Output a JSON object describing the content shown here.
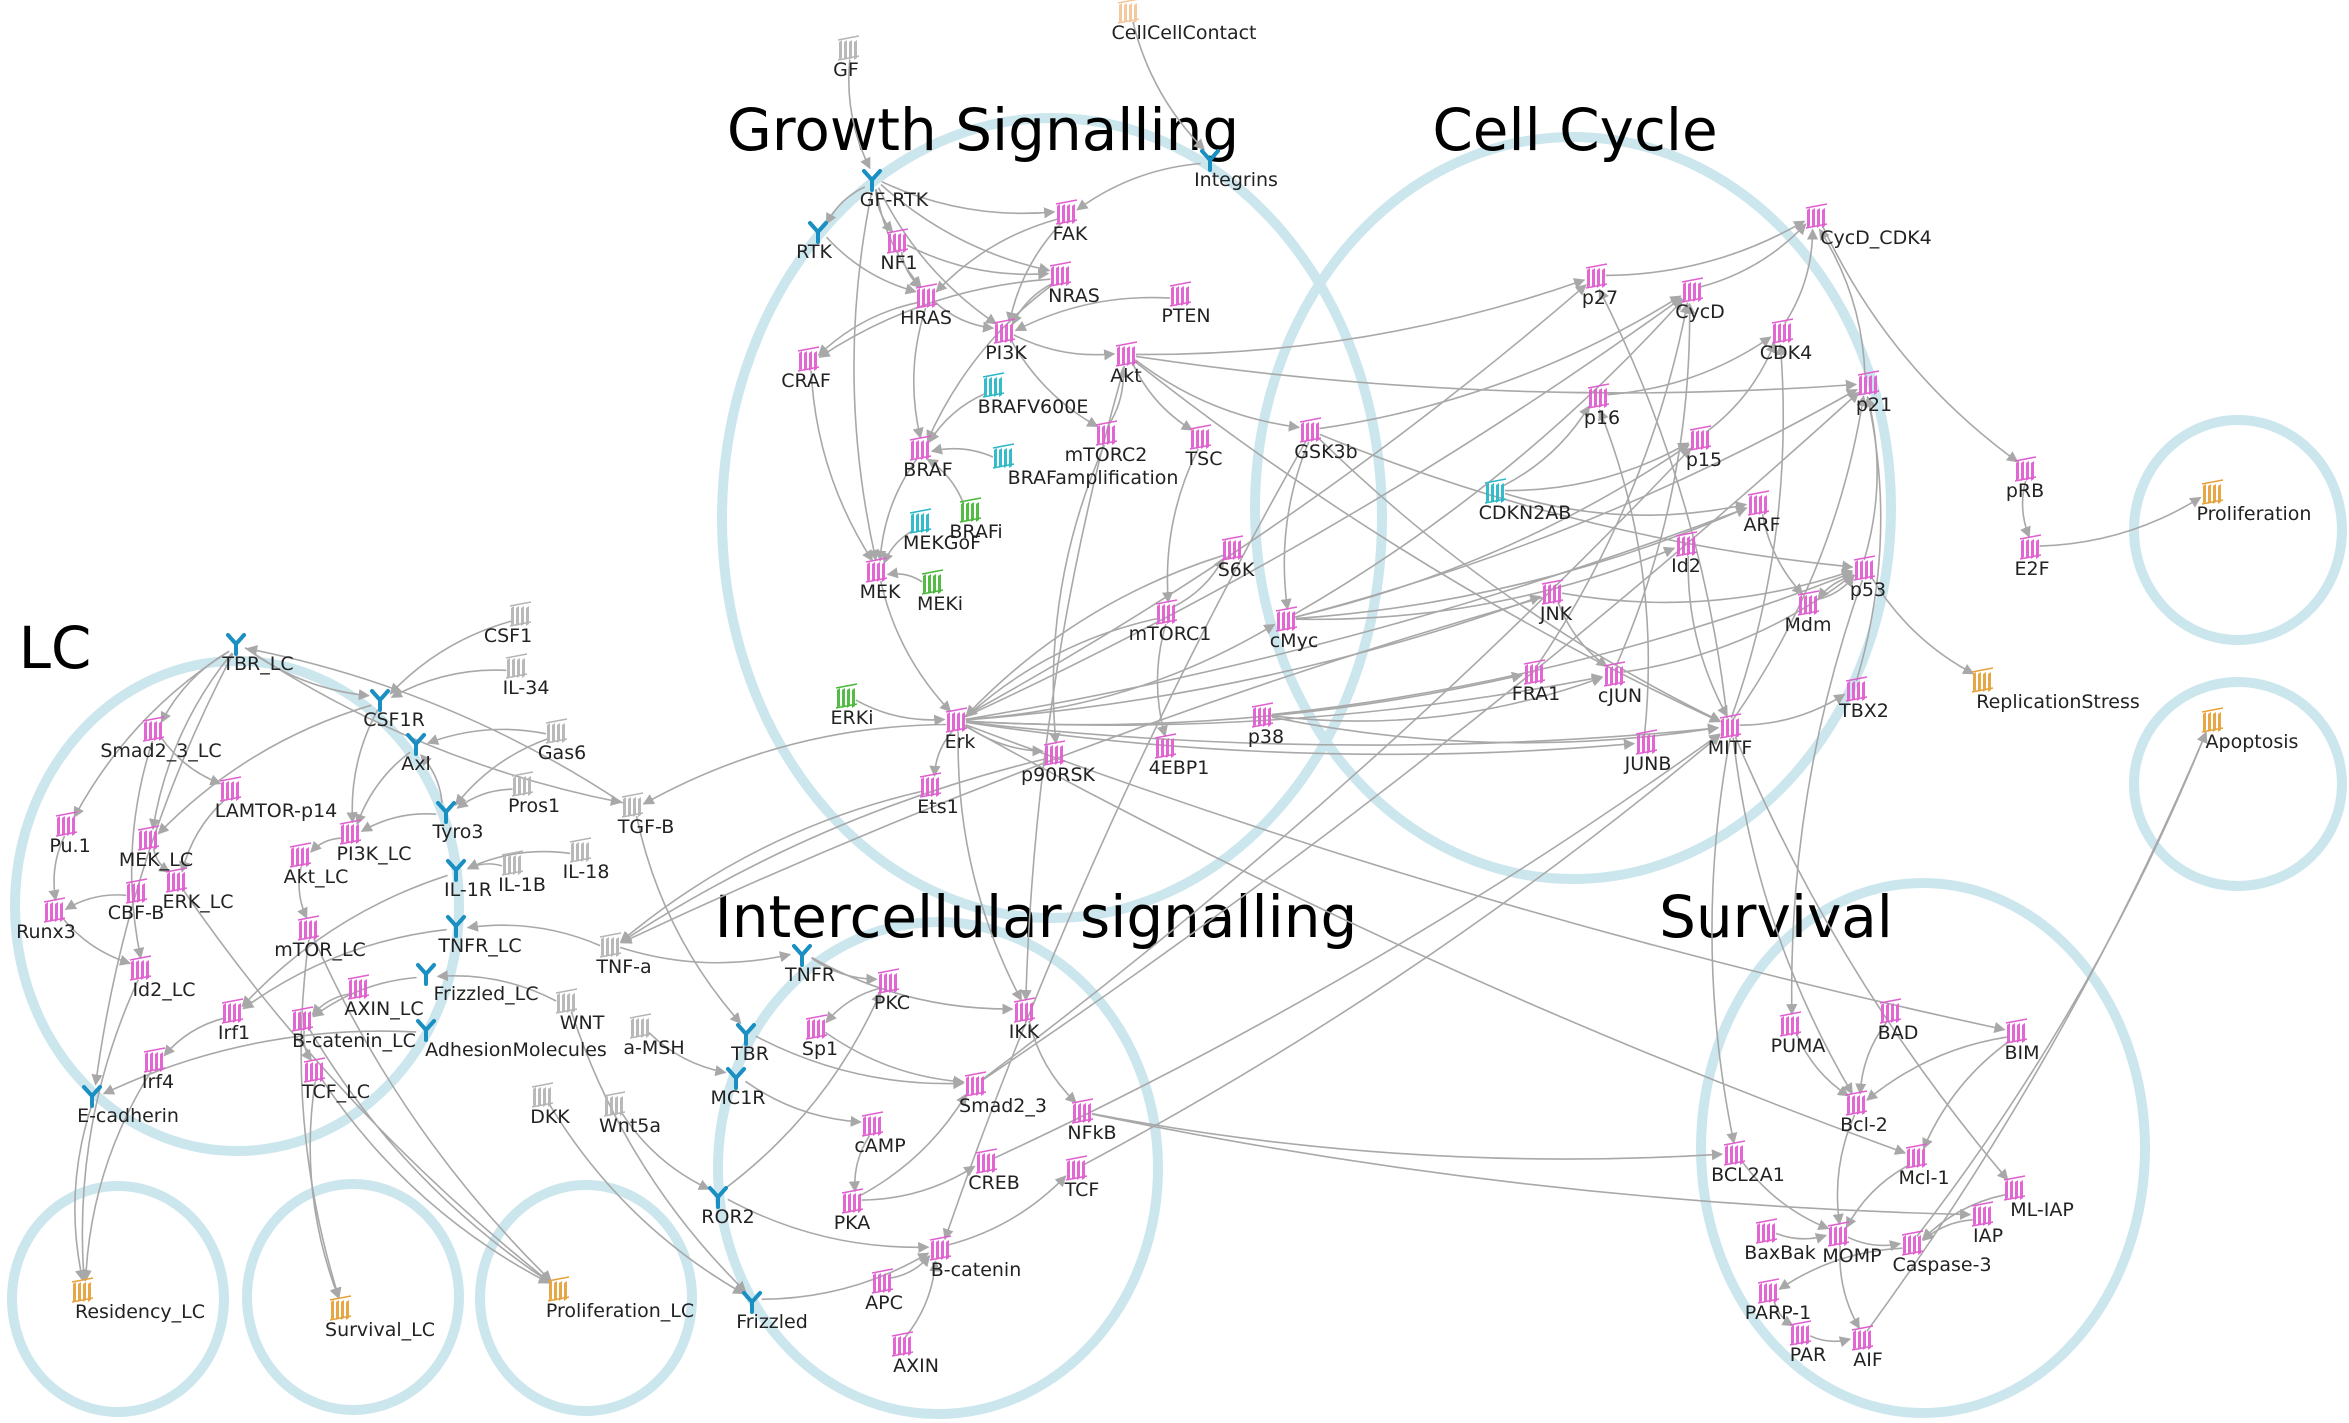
{
  "regions": [
    {
      "id": "growth",
      "label": "Growth Signalling"
    },
    {
      "id": "cellcycle",
      "label": "Cell Cycle"
    },
    {
      "id": "lc",
      "label": "LC"
    },
    {
      "id": "intercellular",
      "label": "Intercellular signalling"
    },
    {
      "id": "survival",
      "label": "Survival"
    },
    {
      "id": "proliferation",
      "label": ""
    },
    {
      "id": "apoptosis",
      "label": ""
    },
    {
      "id": "residency_lc",
      "label": ""
    },
    {
      "id": "survival_lc",
      "label": ""
    },
    {
      "id": "proliferation_lc",
      "label": ""
    }
  ],
  "node_types": {
    "gene": {
      "color": "#e05fd0",
      "icon": "gene-icon"
    },
    "receptor": {
      "color": "#1a8fc2",
      "icon": "receptor-icon"
    },
    "input": {
      "color": "#b5b5b5",
      "icon": "input-node-icon"
    },
    "output": {
      "color": "#e6a23a",
      "icon": "output-node-icon"
    },
    "mutation": {
      "color": "#2ab8c8",
      "icon": "mutation-icon"
    },
    "drug": {
      "color": "#49b83a",
      "icon": "drug-icon"
    },
    "contact": {
      "color": "#f2c79a",
      "icon": "contact-node-icon"
    }
  },
  "nodes": [
    {
      "id": "GF",
      "label": "GF",
      "type": "input"
    },
    {
      "id": "CellCellContact",
      "label": "CellCellContact",
      "type": "contact"
    },
    {
      "id": "GF-RTK",
      "label": "GF-RTK",
      "type": "receptor"
    },
    {
      "id": "Integrins",
      "label": "Integrins",
      "type": "receptor"
    },
    {
      "id": "RTK",
      "label": "RTK",
      "type": "receptor"
    },
    {
      "id": "NF1",
      "label": "NF1",
      "type": "gene"
    },
    {
      "id": "FAK",
      "label": "FAK",
      "type": "gene"
    },
    {
      "id": "HRAS",
      "label": "HRAS",
      "type": "gene"
    },
    {
      "id": "NRAS",
      "label": "NRAS",
      "type": "gene"
    },
    {
      "id": "PTEN",
      "label": "PTEN",
      "type": "gene"
    },
    {
      "id": "PI3K",
      "label": "PI3K",
      "type": "gene"
    },
    {
      "id": "CRAF",
      "label": "CRAF",
      "type": "gene"
    },
    {
      "id": "Akt",
      "label": "Akt",
      "type": "gene"
    },
    {
      "id": "BRAFV600E",
      "label": "BRAFV600E",
      "type": "mutation"
    },
    {
      "id": "mTORC2",
      "label": "mTORC2",
      "type": "gene"
    },
    {
      "id": "TSC",
      "label": "TSC",
      "type": "gene"
    },
    {
      "id": "GSK3b",
      "label": "GSK3b",
      "type": "gene"
    },
    {
      "id": "BRAF",
      "label": "BRAF",
      "type": "gene"
    },
    {
      "id": "BRAFamplification",
      "label": "BRAFamplification",
      "type": "mutation"
    },
    {
      "id": "BRAFi",
      "label": "BRAFi",
      "type": "drug"
    },
    {
      "id": "MEKGoF",
      "label": "MEKGoF",
      "type": "mutation"
    },
    {
      "id": "MEK",
      "label": "MEK",
      "type": "gene"
    },
    {
      "id": "MEKi",
      "label": "MEKi",
      "type": "drug"
    },
    {
      "id": "S6K",
      "label": "S6K",
      "type": "gene"
    },
    {
      "id": "mTORC1",
      "label": "mTORC1",
      "type": "gene"
    },
    {
      "id": "cMyc",
      "label": "cMyc",
      "type": "gene"
    },
    {
      "id": "ERKi",
      "label": "ERKi",
      "type": "drug"
    },
    {
      "id": "Erk",
      "label": "Erk",
      "type": "gene"
    },
    {
      "id": "p38",
      "label": "p38",
      "type": "gene"
    },
    {
      "id": "4EBP1",
      "label": "4EBP1",
      "type": "gene"
    },
    {
      "id": "p90RSK",
      "label": "p90RSK",
      "type": "gene"
    },
    {
      "id": "Ets1",
      "label": "Ets1",
      "type": "gene"
    },
    {
      "id": "CycD_CDK4",
      "label": "CycD_CDK4",
      "type": "gene"
    },
    {
      "id": "p27",
      "label": "p27",
      "type": "gene"
    },
    {
      "id": "CycD",
      "label": "CycD",
      "type": "gene"
    },
    {
      "id": "CDK4",
      "label": "CDK4",
      "type": "gene"
    },
    {
      "id": "p21",
      "label": "p21",
      "type": "gene"
    },
    {
      "id": "p16",
      "label": "p16",
      "type": "gene"
    },
    {
      "id": "p15",
      "label": "p15",
      "type": "gene"
    },
    {
      "id": "pRB",
      "label": "pRB",
      "type": "gene"
    },
    {
      "id": "CDKN2AB",
      "label": "CDKN2AB",
      "type": "mutation"
    },
    {
      "id": "ARF",
      "label": "ARF",
      "type": "gene"
    },
    {
      "id": "E2F",
      "label": "E2F",
      "type": "gene"
    },
    {
      "id": "Id2",
      "label": "Id2",
      "type": "gene"
    },
    {
      "id": "p53",
      "label": "p53",
      "type": "gene"
    },
    {
      "id": "Mdm",
      "label": "Mdm",
      "type": "gene"
    },
    {
      "id": "JNK",
      "label": "JNK",
      "type": "gene"
    },
    {
      "id": "FRA1",
      "label": "FRA1",
      "type": "gene"
    },
    {
      "id": "cJUN",
      "label": "cJUN",
      "type": "gene"
    },
    {
      "id": "TBX2",
      "label": "TBX2",
      "type": "gene"
    },
    {
      "id": "MITF",
      "label": "MITF",
      "type": "gene"
    },
    {
      "id": "JUNB",
      "label": "JUNB",
      "type": "gene"
    },
    {
      "id": "Proliferation",
      "label": "Proliferation",
      "type": "output"
    },
    {
      "id": "ReplicationStress",
      "label": "ReplicationStress",
      "type": "output"
    },
    {
      "id": "Apoptosis",
      "label": "Apoptosis",
      "type": "output"
    },
    {
      "id": "CSF1",
      "label": "CSF1",
      "type": "input"
    },
    {
      "id": "IL-34",
      "label": "IL-34",
      "type": "input"
    },
    {
      "id": "TBR_LC",
      "label": "TBR_LC",
      "type": "receptor"
    },
    {
      "id": "CSF1R",
      "label": "CSF1R",
      "type": "receptor"
    },
    {
      "id": "Gas6",
      "label": "Gas6",
      "type": "input"
    },
    {
      "id": "Axl",
      "label": "Axl",
      "type": "receptor"
    },
    {
      "id": "Smad2_3_LC",
      "label": "Smad2_3_LC",
      "type": "gene"
    },
    {
      "id": "Pros1",
      "label": "Pros1",
      "type": "input"
    },
    {
      "id": "LAMTOR-p14",
      "label": "LAMTOR-p14",
      "type": "gene"
    },
    {
      "id": "Tyro3",
      "label": "Tyro3",
      "type": "receptor"
    },
    {
      "id": "TGF-B",
      "label": "TGF-B",
      "type": "input"
    },
    {
      "id": "Pu.1",
      "label": "Pu.1",
      "type": "gene"
    },
    {
      "id": "MEK_LC",
      "label": "MEK_LC",
      "type": "gene"
    },
    {
      "id": "PI3K_LC",
      "label": "PI3K_LC",
      "type": "gene"
    },
    {
      "id": "IL-18",
      "label": "IL-18",
      "type": "input"
    },
    {
      "id": "Akt_LC",
      "label": "Akt_LC",
      "type": "gene"
    },
    {
      "id": "IL-1B",
      "label": "IL-1B",
      "type": "input"
    },
    {
      "id": "IL-1R",
      "label": "IL-1R",
      "type": "receptor"
    },
    {
      "id": "CBF-B",
      "label": "CBF-B",
      "type": "gene"
    },
    {
      "id": "ERK_LC",
      "label": "ERK_LC",
      "type": "gene"
    },
    {
      "id": "Runx3",
      "label": "Runx3",
      "type": "gene"
    },
    {
      "id": "mTOR_LC",
      "label": "mTOR_LC",
      "type": "gene"
    },
    {
      "id": "TNFR_LC",
      "label": "TNFR_LC",
      "type": "receptor"
    },
    {
      "id": "TNF-a",
      "label": "TNF-a",
      "type": "input"
    },
    {
      "id": "Id2_LC",
      "label": "Id2_LC",
      "type": "gene"
    },
    {
      "id": "AXIN_LC",
      "label": "AXIN_LC",
      "type": "gene"
    },
    {
      "id": "Frizzled_LC",
      "label": "Frizzled_LC",
      "type": "receptor"
    },
    {
      "id": "WNT",
      "label": "WNT",
      "type": "input"
    },
    {
      "id": "Irf1",
      "label": "Irf1",
      "type": "gene"
    },
    {
      "id": "B-catenin_LC",
      "label": "B-catenin_LC",
      "type": "gene"
    },
    {
      "id": "AdhesionMolecules",
      "label": "AdhesionMolecules",
      "type": "receptor"
    },
    {
      "id": "Irf4",
      "label": "Irf4",
      "type": "gene"
    },
    {
      "id": "TCF_LC",
      "label": "TCF_LC",
      "type": "gene"
    },
    {
      "id": "E-cadherin",
      "label": "E-cadherin",
      "type": "receptor"
    },
    {
      "id": "DKK",
      "label": "DKK",
      "type": "input"
    },
    {
      "id": "a-MSH",
      "label": "a-MSH",
      "type": "input"
    },
    {
      "id": "Wnt5a",
      "label": "Wnt5a",
      "type": "input"
    },
    {
      "id": "TNFR",
      "label": "TNFR",
      "type": "receptor"
    },
    {
      "id": "PKC",
      "label": "PKC",
      "type": "gene"
    },
    {
      "id": "Sp1",
      "label": "Sp1",
      "type": "gene"
    },
    {
      "id": "TBR",
      "label": "TBR",
      "type": "receptor"
    },
    {
      "id": "IKK",
      "label": "IKK",
      "type": "gene"
    },
    {
      "id": "MC1R",
      "label": "MC1R",
      "type": "receptor"
    },
    {
      "id": "Smad2_3",
      "label": "Smad2_3",
      "type": "gene"
    },
    {
      "id": "cAMP",
      "label": "cAMP",
      "type": "gene"
    },
    {
      "id": "NFkB",
      "label": "NFkB",
      "type": "gene"
    },
    {
      "id": "CREB",
      "label": "CREB",
      "type": "gene"
    },
    {
      "id": "TCF",
      "label": "TCF",
      "type": "gene"
    },
    {
      "id": "ROR2",
      "label": "ROR2",
      "type": "receptor"
    },
    {
      "id": "PKA",
      "label": "PKA",
      "type": "gene"
    },
    {
      "id": "B-catenin",
      "label": "B-catenin",
      "type": "gene"
    },
    {
      "id": "APC",
      "label": "APC",
      "type": "gene"
    },
    {
      "id": "Frizzled",
      "label": "Frizzled",
      "type": "receptor"
    },
    {
      "id": "AXIN",
      "label": "AXIN",
      "type": "gene"
    },
    {
      "id": "PUMA",
      "label": "PUMA",
      "type": "gene"
    },
    {
      "id": "BAD",
      "label": "BAD",
      "type": "gene"
    },
    {
      "id": "BIM",
      "label": "BIM",
      "type": "gene"
    },
    {
      "id": "Bcl-2",
      "label": "Bcl-2",
      "type": "gene"
    },
    {
      "id": "Mcl-1",
      "label": "Mcl-1",
      "type": "gene"
    },
    {
      "id": "BCL2A1",
      "label": "BCL2A1",
      "type": "gene"
    },
    {
      "id": "ML-IAP",
      "label": "ML-IAP",
      "type": "gene"
    },
    {
      "id": "IAP",
      "label": "IAP",
      "type": "gene"
    },
    {
      "id": "BaxBak",
      "label": "BaxBak",
      "type": "gene"
    },
    {
      "id": "MOMP",
      "label": "MOMP",
      "type": "gene"
    },
    {
      "id": "Caspase-3",
      "label": "Caspase-3",
      "type": "gene"
    },
    {
      "id": "PARP-1",
      "label": "PARP-1",
      "type": "gene"
    },
    {
      "id": "PAR",
      "label": "PAR",
      "type": "gene"
    },
    {
      "id": "AIF",
      "label": "AIF",
      "type": "gene"
    },
    {
      "id": "Residency_LC",
      "label": "Residency_LC",
      "type": "output"
    },
    {
      "id": "Survival_LC",
      "label": "Survival_LC",
      "type": "output"
    },
    {
      "id": "Proliferation_LC",
      "label": "Proliferation_LC",
      "type": "output"
    }
  ],
  "edges": [
    [
      "GF",
      "GF-RTK"
    ],
    [
      "CellCellContact",
      "Integrins"
    ],
    [
      "GF-RTK",
      "RTK"
    ],
    [
      "Integrins",
      "FAK"
    ],
    [
      "GF-RTK",
      "NF1"
    ],
    [
      "GF-RTK",
      "FAK"
    ],
    [
      "GF-RTK",
      "NRAS"
    ],
    [
      "GF-RTK",
      "HRAS"
    ],
    [
      "GF-RTK",
      "PI3K"
    ],
    [
      "GF-RTK",
      "MEK"
    ],
    [
      "RTK",
      "HRAS"
    ],
    [
      "NF1",
      "HRAS"
    ],
    [
      "NF1",
      "NRAS"
    ],
    [
      "FAK",
      "PI3K"
    ],
    [
      "FAK",
      "HRAS"
    ],
    [
      "HRAS",
      "CRAF"
    ],
    [
      "HRAS",
      "PI3K"
    ],
    [
      "HRAS",
      "BRAF"
    ],
    [
      "NRAS",
      "PI3K"
    ],
    [
      "NRAS",
      "BRAF"
    ],
    [
      "NRAS",
      "CRAF"
    ],
    [
      "PTEN",
      "PI3K"
    ],
    [
      "PI3K",
      "Akt"
    ],
    [
      "PI3K",
      "mTORC2"
    ],
    [
      "Akt",
      "TSC"
    ],
    [
      "Akt",
      "GSK3b"
    ],
    [
      "Akt",
      "p21"
    ],
    [
      "Akt",
      "p27"
    ],
    [
      "Akt",
      "MITF"
    ],
    [
      "mTORC2",
      "Akt"
    ],
    [
      "mTORC2",
      "p90RSK"
    ],
    [
      "TSC",
      "mTORC1"
    ],
    [
      "mTORC1",
      "S6K"
    ],
    [
      "mTORC1",
      "4EBP1"
    ],
    [
      "BRAFV600E",
      "BRAF"
    ],
    [
      "BRAFamplification",
      "BRAF"
    ],
    [
      "BRAFi",
      "BRAF"
    ],
    [
      "BRAF",
      "MEK"
    ],
    [
      "CRAF",
      "MEK"
    ],
    [
      "MEKGoF",
      "MEK"
    ],
    [
      "MEKi",
      "MEK"
    ],
    [
      "MEK",
      "Erk"
    ],
    [
      "ERKi",
      "Erk"
    ],
    [
      "Erk",
      "Ets1"
    ],
    [
      "Erk",
      "p90RSK"
    ],
    [
      "Erk",
      "cMyc"
    ],
    [
      "Erk",
      "FRA1"
    ],
    [
      "Erk",
      "cJUN"
    ],
    [
      "Erk",
      "JUNB"
    ],
    [
      "Erk",
      "MITF"
    ],
    [
      "Erk",
      "CycD"
    ],
    [
      "Erk",
      "p27"
    ],
    [
      "Erk",
      "ARF"
    ],
    [
      "Erk",
      "BIM"
    ],
    [
      "Erk",
      "Mcl-1"
    ],
    [
      "Erk",
      "TGF-B"
    ],
    [
      "Erk",
      "JNK"
    ],
    [
      "GSK3b",
      "cMyc"
    ],
    [
      "GSK3b",
      "CycD"
    ],
    [
      "GSK3b",
      "MITF"
    ],
    [
      "GSK3b",
      "B-catenin"
    ],
    [
      "GSK3b",
      "p53"
    ],
    [
      "cMyc",
      "CycD"
    ],
    [
      "cMyc",
      "p21"
    ],
    [
      "cMyc",
      "p15"
    ],
    [
      "cMyc",
      "ARF"
    ],
    [
      "cMyc",
      "Id2"
    ],
    [
      "JNK",
      "cJUN"
    ],
    [
      "p38",
      "cJUN"
    ],
    [
      "p38",
      "MITF"
    ],
    [
      "p38",
      "p53"
    ],
    [
      "JNK",
      "p53"
    ],
    [
      "CycD",
      "CycD_CDK4"
    ],
    [
      "CDK4",
      "CycD_CDK4"
    ],
    [
      "p27",
      "CycD_CDK4"
    ],
    [
      "p21",
      "CycD_CDK4"
    ],
    [
      "p16",
      "CDK4"
    ],
    [
      "p15",
      "CDK4"
    ],
    [
      "CycD_CDK4",
      "pRB"
    ],
    [
      "pRB",
      "E2F"
    ],
    [
      "E2F",
      "Proliferation"
    ],
    [
      "CDKN2AB",
      "p16"
    ],
    [
      "CDKN2AB",
      "p15"
    ],
    [
      "CDKN2AB",
      "ARF"
    ],
    [
      "ARF",
      "Mdm"
    ],
    [
      "Mdm",
      "p53"
    ],
    [
      "p53",
      "p21"
    ],
    [
      "p53",
      "ReplicationStress"
    ],
    [
      "p53",
      "PUMA"
    ],
    [
      "p53",
      "Mdm"
    ],
    [
      "TBX2",
      "p21"
    ],
    [
      "MITF",
      "TBX2"
    ],
    [
      "MITF",
      "CDK4"
    ],
    [
      "MITF",
      "p21"
    ],
    [
      "MITF",
      "BCL2A1"
    ],
    [
      "MITF",
      "ML-IAP"
    ],
    [
      "MITF",
      "Bcl-2"
    ],
    [
      "MITF",
      "p27"
    ],
    [
      "cJUN",
      "p53"
    ],
    [
      "cJUN",
      "CycD"
    ],
    [
      "JUNB",
      "p16"
    ],
    [
      "Id2",
      "MITF"
    ],
    [
      "FRA1",
      "CycD"
    ],
    [
      "PUMA",
      "Bcl-2"
    ],
    [
      "BAD",
      "Bcl-2"
    ],
    [
      "BIM",
      "Mcl-1"
    ],
    [
      "BIM",
      "Bcl-2"
    ],
    [
      "Bcl-2",
      "MOMP"
    ],
    [
      "Mcl-1",
      "MOMP"
    ],
    [
      "BCL2A1",
      "MOMP"
    ],
    [
      "BaxBak",
      "MOMP"
    ],
    [
      "MOMP",
      "Caspase-3"
    ],
    [
      "MOMP",
      "AIF"
    ],
    [
      "IAP",
      "Caspase-3"
    ],
    [
      "ML-IAP",
      "Caspase-3"
    ],
    [
      "Caspase-3",
      "PARP-1"
    ],
    [
      "PARP-1",
      "PAR"
    ],
    [
      "PAR",
      "AIF"
    ],
    [
      "Caspase-3",
      "Apoptosis"
    ],
    [
      "AIF",
      "Apoptosis"
    ],
    [
      "CSF1",
      "CSF1R"
    ],
    [
      "IL-34",
      "CSF1R"
    ],
    [
      "Gas6",
      "Axl"
    ],
    [
      "Gas6",
      "Tyro3"
    ],
    [
      "Pros1",
      "Tyro3"
    ],
    [
      "TBR_LC",
      "Smad2_3_LC"
    ],
    [
      "TBR_LC",
      "CSF1R"
    ],
    [
      "TBR_LC",
      "TGF-B"
    ],
    [
      "TBR_LC",
      "Pu.1"
    ],
    [
      "TBR_LC",
      "MEK_LC"
    ],
    [
      "TBR_LC",
      "E-cadherin"
    ],
    [
      "CSF1R",
      "PI3K_LC"
    ],
    [
      "CSF1R",
      "MEK_LC"
    ],
    [
      "Axl",
      "PI3K_LC"
    ],
    [
      "Tyro3",
      "PI3K_LC"
    ],
    [
      "Tyro3",
      "Axl"
    ],
    [
      "Smad2_3_LC",
      "Id2_LC"
    ],
    [
      "Smad2_3_LC",
      "LAMTOR-p14"
    ],
    [
      "LAMTOR-p14",
      "ERK_LC"
    ],
    [
      "Pu.1",
      "Runx3"
    ],
    [
      "Runx3",
      "Id2_LC"
    ],
    [
      "CBF-B",
      "Runx3"
    ],
    [
      "MEK_LC",
      "ERK_LC"
    ],
    [
      "PI3K_LC",
      "Akt_LC"
    ],
    [
      "Akt_LC",
      "mTOR_LC"
    ],
    [
      "ERK_LC",
      "Proliferation_LC"
    ],
    [
      "IL-18",
      "IL-1R"
    ],
    [
      "IL-1B",
      "IL-1R"
    ],
    [
      "IL-1R",
      "Irf1"
    ],
    [
      "TNF-a",
      "TNFR_LC"
    ],
    [
      "TNF-a",
      "TNFR"
    ],
    [
      "TNFR_LC",
      "Irf1"
    ],
    [
      "WNT",
      "Frizzled_LC"
    ],
    [
      "WNT",
      "Frizzled"
    ],
    [
      "Frizzled_LC",
      "B-catenin_LC"
    ],
    [
      "AXIN_LC",
      "B-catenin_LC"
    ],
    [
      "B-catenin_LC",
      "TCF_LC"
    ],
    [
      "AdhesionMolecules",
      "E-cadherin"
    ],
    [
      "Irf1",
      "Irf4"
    ],
    [
      "Irf4",
      "Residency_LC"
    ],
    [
      "E-cadherin",
      "Residency_LC"
    ],
    [
      "Id2_LC",
      "Residency_LC"
    ],
    [
      "TCF_LC",
      "Survival_LC"
    ],
    [
      "mTOR_LC",
      "Survival_LC"
    ],
    [
      "mTOR_LC",
      "Proliferation_LC"
    ],
    [
      "TCF_LC",
      "Proliferation_LC"
    ],
    [
      "B-catenin_LC",
      "Proliferation_LC"
    ],
    [
      "DKK",
      "Frizzled"
    ],
    [
      "a-MSH",
      "MC1R"
    ],
    [
      "Wnt5a",
      "ROR2"
    ],
    [
      "TGF-B",
      "TBR"
    ],
    [
      "TGF-B",
      "TBR_LC"
    ],
    [
      "TNFR",
      "IKK"
    ],
    [
      "TNFR",
      "PKC"
    ],
    [
      "IKK",
      "NFkB"
    ],
    [
      "TBR",
      "Smad2_3"
    ],
    [
      "Smad2_3",
      "p21"
    ],
    [
      "Smad2_3",
      "p15"
    ],
    [
      "MC1R",
      "cAMP"
    ],
    [
      "cAMP",
      "PKA"
    ],
    [
      "PKA",
      "CREB"
    ],
    [
      "CREB",
      "MITF"
    ],
    [
      "ROR2",
      "PKC"
    ],
    [
      "ROR2",
      "B-catenin"
    ],
    [
      "Frizzled",
      "B-catenin"
    ],
    [
      "APC",
      "B-catenin"
    ],
    [
      "AXIN",
      "B-catenin"
    ],
    [
      "B-catenin",
      "TCF"
    ],
    [
      "TCF",
      "MITF"
    ],
    [
      "PKC",
      "Sp1"
    ],
    [
      "Sp1",
      "Smad2_3"
    ],
    [
      "NFkB",
      "BCL2A1"
    ],
    [
      "NFkB",
      "IAP"
    ],
    [
      "PKA",
      "Smad2_3"
    ],
    [
      "Erk",
      "IKK"
    ],
    [
      "Akt",
      "IKK"
    ],
    [
      "S6K",
      "Erk"
    ],
    [
      "p90RSK",
      "TNF-a"
    ],
    [
      "Ets1",
      "TNF-a"
    ],
    [
      "JNK",
      "TNF-a"
    ],
    [
      "mTORC1",
      "Erk"
    ]
  ]
}
